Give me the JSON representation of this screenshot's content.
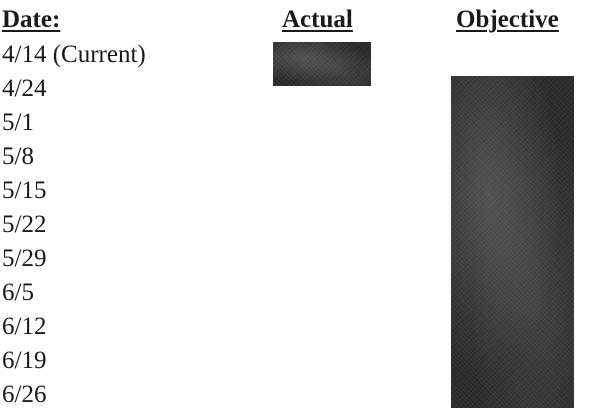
{
  "headers": {
    "date": "Date:",
    "actual": "Actual",
    "objective": "Objective"
  },
  "chart_data": {
    "type": "bar",
    "categories": [
      "4/14 (Current)",
      "4/24",
      "5/1",
      "5/8",
      "5/15",
      "5/22",
      "5/29",
      "6/5",
      "6/12",
      "6/19",
      "6/26"
    ],
    "series": [
      {
        "name": "Actual",
        "start": "4/14 (Current)",
        "end": "4/24"
      },
      {
        "name": "Objective",
        "start": "4/24",
        "end": "6/26"
      }
    ],
    "colors": {
      "bar": "#2b2b2b"
    }
  }
}
